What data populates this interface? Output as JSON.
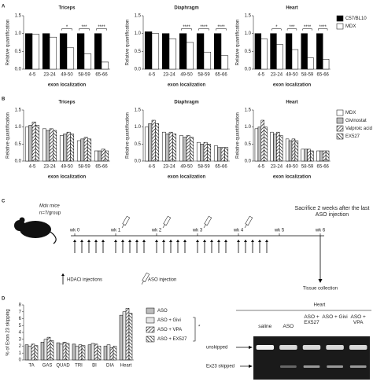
{
  "panel_labels": [
    "A",
    "B",
    "C",
    "D"
  ],
  "chart_data": [
    {
      "type": "bar",
      "title": "Triceps",
      "ylabel": "Relative quantification",
      "xlabel": "exon localization",
      "categories": [
        "4-5",
        "23-24",
        "49-50",
        "58-59",
        "65-66"
      ],
      "series": [
        {
          "color": "#000000",
          "values": [
            1.0,
            1.0,
            1.0,
            1.0,
            1.0
          ]
        },
        {
          "color": "#ffffff",
          "values": [
            0.98,
            0.9,
            0.6,
            0.43,
            0.2
          ]
        }
      ],
      "significance": [
        null,
        null,
        "*",
        "***",
        "****"
      ],
      "ylim": [
        0,
        1.5
      ],
      "yticks": [
        {
          "value": 0,
          "label": "0.0"
        },
        {
          "value": 0.5,
          "label": "0.5"
        },
        {
          "value": 1,
          "label": "1.0"
        },
        {
          "value": 1.5,
          "label": "1.5"
        }
      ]
    },
    {
      "type": "bar",
      "title": "Diaphragm",
      "ylabel": "Relative quantification",
      "xlabel": "exon localization",
      "categories": [
        "4-5",
        "23-24",
        "49-50",
        "58-59",
        "65-66"
      ],
      "series": [
        {
          "color": "#000000",
          "values": [
            1.05,
            1.0,
            1.0,
            1.0,
            1.0
          ]
        },
        {
          "color": "#ffffff",
          "values": [
            1.0,
            0.85,
            0.75,
            0.48,
            0.38
          ]
        }
      ],
      "significance": [
        null,
        null,
        "****",
        "****",
        "****"
      ],
      "ylim": [
        0,
        1.5
      ],
      "yticks": [
        {
          "value": 0,
          "label": "0.0"
        },
        {
          "value": 0.5,
          "label": "0.5"
        },
        {
          "value": 1,
          "label": "1.0"
        },
        {
          "value": 1.5,
          "label": "1.5"
        }
      ]
    },
    {
      "type": "bar",
      "title": "Heart",
      "ylabel": "Relative quantification",
      "xlabel": "exon localization",
      "categories": [
        "4-5",
        "23-24",
        "49-50",
        "58-59",
        "65-66"
      ],
      "series": [
        {
          "name": "C57/BL10",
          "color": "#000000",
          "values": [
            1.0,
            1.0,
            1.0,
            1.0,
            1.0
          ]
        },
        {
          "name": "MDX",
          "color": "#ffffff",
          "values": [
            0.85,
            0.7,
            0.55,
            0.32,
            0.28
          ]
        }
      ],
      "significance": [
        null,
        "*",
        "***",
        "****",
        "****"
      ],
      "ylim": [
        0,
        1.5
      ],
      "yticks": [
        {
          "value": 0,
          "label": "0.0"
        },
        {
          "value": 0.5,
          "label": "0.5"
        },
        {
          "value": 1,
          "label": "1.0"
        },
        {
          "value": 1.5,
          "label": "1.5"
        }
      ]
    },
    {
      "type": "bar",
      "title": "Triceps",
      "ylabel": "Relative quantification",
      "xlabel": "exon localization",
      "categories": [
        "4-5",
        "23-24",
        "49-50",
        "58-59",
        "65-66"
      ],
      "series": [
        {
          "color": "#ffffff",
          "values": [
            1.0,
            0.95,
            0.75,
            0.6,
            0.3
          ]
        },
        {
          "color": "#bdbdbd",
          "values": [
            1.05,
            0.9,
            0.8,
            0.65,
            0.3
          ]
        },
        {
          "color": "#000000",
          "hatch": "up",
          "values": [
            1.15,
            0.95,
            0.85,
            0.7,
            0.35
          ]
        },
        {
          "color": "#000000",
          "hatch": "down",
          "values": [
            1.05,
            0.9,
            0.8,
            0.65,
            0.3
          ]
        }
      ],
      "ylim": [
        0,
        1.5
      ],
      "yticks": [
        {
          "value": 0,
          "label": "0.0"
        },
        {
          "value": 0.5,
          "label": "0.5"
        },
        {
          "value": 1,
          "label": "1.0"
        },
        {
          "value": 1.5,
          "label": "1.5"
        }
      ]
    },
    {
      "type": "bar",
      "title": "Diaphragm",
      "ylabel": "Relative quantification",
      "xlabel": "exon localization",
      "categories": [
        "4-5",
        "23-24",
        "49-50",
        "58-59",
        "65-66"
      ],
      "series": [
        {
          "color": "#ffffff",
          "values": [
            1.0,
            0.85,
            0.75,
            0.55,
            0.45
          ]
        },
        {
          "color": "#bdbdbd",
          "values": [
            1.1,
            0.8,
            0.7,
            0.5,
            0.4
          ]
        },
        {
          "color": "#000000",
          "hatch": "up",
          "values": [
            1.2,
            0.85,
            0.75,
            0.55,
            0.4
          ]
        },
        {
          "color": "#000000",
          "hatch": "down",
          "values": [
            1.1,
            0.8,
            0.7,
            0.5,
            0.4
          ]
        }
      ],
      "ylim": [
        0,
        1.5
      ],
      "yticks": [
        {
          "value": 0,
          "label": "0.0"
        },
        {
          "value": 0.5,
          "label": "0.5"
        },
        {
          "value": 1,
          "label": "1.0"
        },
        {
          "value": 1.5,
          "label": "1.5"
        }
      ]
    },
    {
      "type": "bar",
      "title": "Heart",
      "ylabel": "Relative quantification",
      "xlabel": "exon localization",
      "categories": [
        "4-5",
        "23-24",
        "49-50",
        "58-59",
        "65-66"
      ],
      "series": [
        {
          "name": "MDX",
          "color": "#ffffff",
          "values": [
            0.95,
            0.85,
            0.65,
            0.35,
            0.3
          ]
        },
        {
          "name": "Givinostat",
          "color": "#bdbdbd",
          "values": [
            1.0,
            0.8,
            0.6,
            0.35,
            0.3
          ]
        },
        {
          "name": "Valproic acid",
          "color": "#000000",
          "hatch": "up",
          "values": [
            1.2,
            0.85,
            0.65,
            0.35,
            0.3
          ]
        },
        {
          "name": "EX527",
          "color": "#000000",
          "hatch": "down",
          "values": [
            1.0,
            0.75,
            0.6,
            0.3,
            0.3
          ]
        }
      ],
      "ylim": [
        0,
        1.5
      ],
      "yticks": [
        {
          "value": 0,
          "label": "0.0"
        },
        {
          "value": 0.5,
          "label": "0.5"
        },
        {
          "value": 1,
          "label": "1.0"
        },
        {
          "value": 1.5,
          "label": "1.5"
        }
      ]
    },
    {
      "type": "bar",
      "ylabel": "% of Exon 23 skipping",
      "categories": [
        "TA",
        "GAS",
        "QUAD",
        "TRI",
        "BI",
        "DIA",
        "Heart"
      ],
      "series": [
        {
          "name": "ASO",
          "color": "#bdbdbd",
          "values": [
            2.2,
            2.6,
            2.5,
            2.3,
            2.2,
            2.0,
            6.5
          ]
        },
        {
          "name": "ASO + Givi",
          "color": "#e6e6e6",
          "values": [
            2.0,
            3.0,
            2.3,
            2.0,
            2.4,
            2.2,
            7.0
          ]
        },
        {
          "name": "ASO + VPA",
          "color": "#000000",
          "hatch": "up",
          "values": [
            2.3,
            3.3,
            2.6,
            2.2,
            2.3,
            1.8,
            7.5
          ]
        },
        {
          "name": "ASO + EX527",
          "color": "#000000",
          "hatch": "down",
          "values": [
            2.1,
            2.8,
            2.4,
            2.1,
            2.0,
            2.0,
            6.8
          ]
        }
      ],
      "legend_note": "*",
      "ylim": [
        0,
        8
      ],
      "yticks": [
        0,
        1,
        2,
        3,
        4,
        5,
        6,
        7,
        8
      ]
    }
  ],
  "timeline": {
    "cohort": "Mdx mice",
    "group": "n=7/group",
    "weeks": [
      "wk 0",
      "wk 1",
      "wk 2",
      "wk 3",
      "wk 4",
      "wk 5",
      "wk 6"
    ],
    "sacrifice_note": "Sacrifice 2 weeks after the last ASO injection",
    "hdaci_label": "HDACi injections",
    "aso_label": "ASO injection",
    "tissue_label": "Tissue collection"
  },
  "gel": {
    "title": "Heart",
    "lanes": [
      "saline",
      "ASO",
      "ASO + EX527",
      "ASO + Givi",
      "ASO + VPA"
    ],
    "bands": [
      "unskipped",
      "Ex23 skipped"
    ]
  }
}
